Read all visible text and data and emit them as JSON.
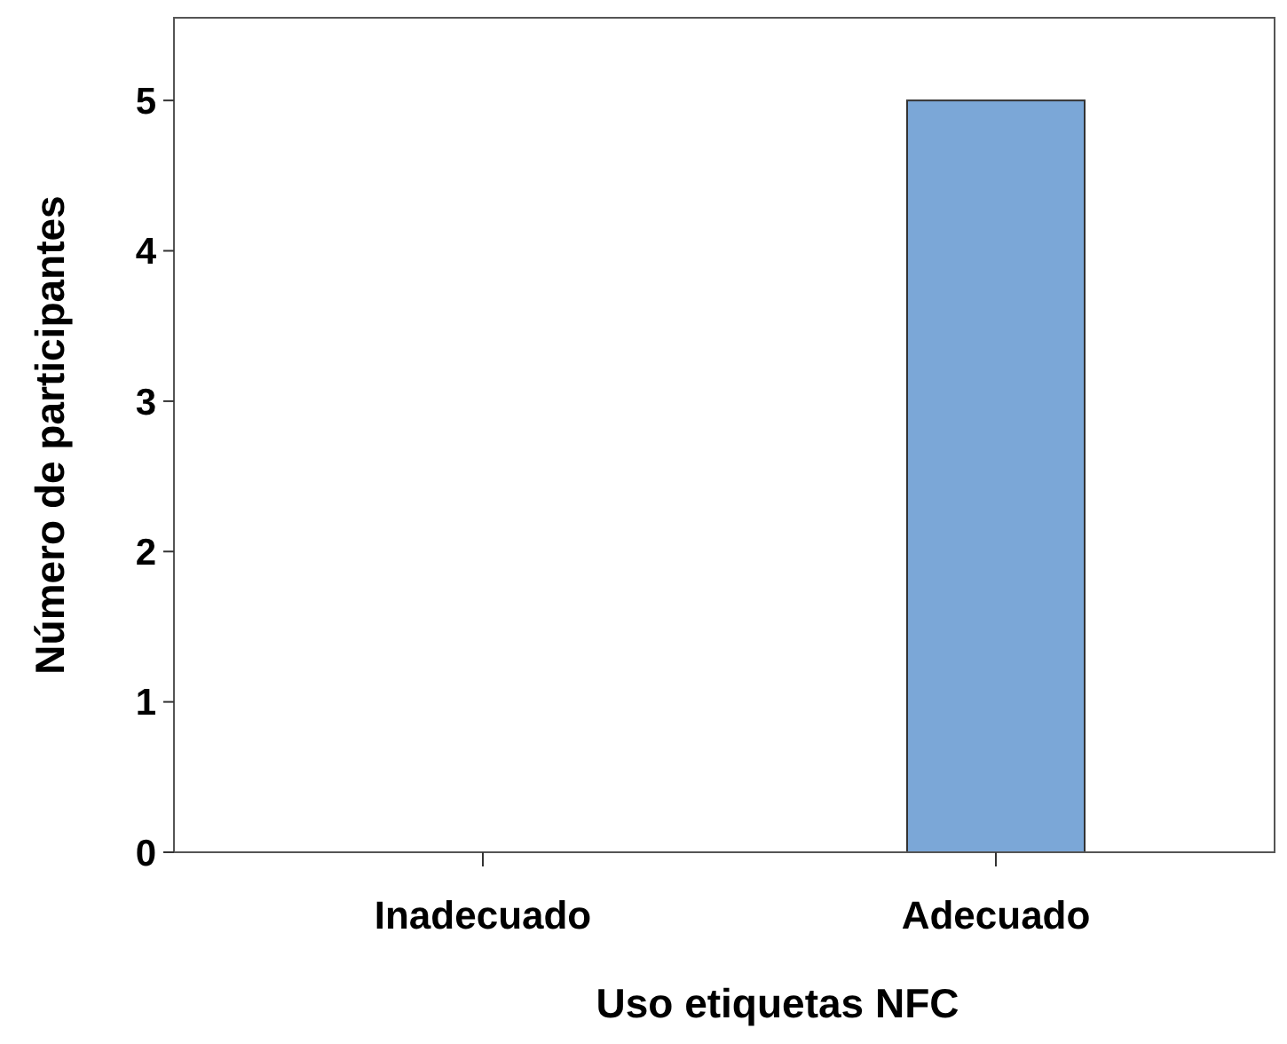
{
  "chart_data": {
    "type": "bar",
    "xlabel": "Uso etiquetas NFC",
    "ylabel": "Número de participantes",
    "categories": [
      "Inadecuado",
      "Adecuado"
    ],
    "values": [
      0,
      5
    ],
    "color": "#7ba7d7",
    "ylim": [
      0,
      5.55
    ],
    "yticks": [
      0,
      1,
      2,
      3,
      4,
      5
    ],
    "grid": false
  }
}
